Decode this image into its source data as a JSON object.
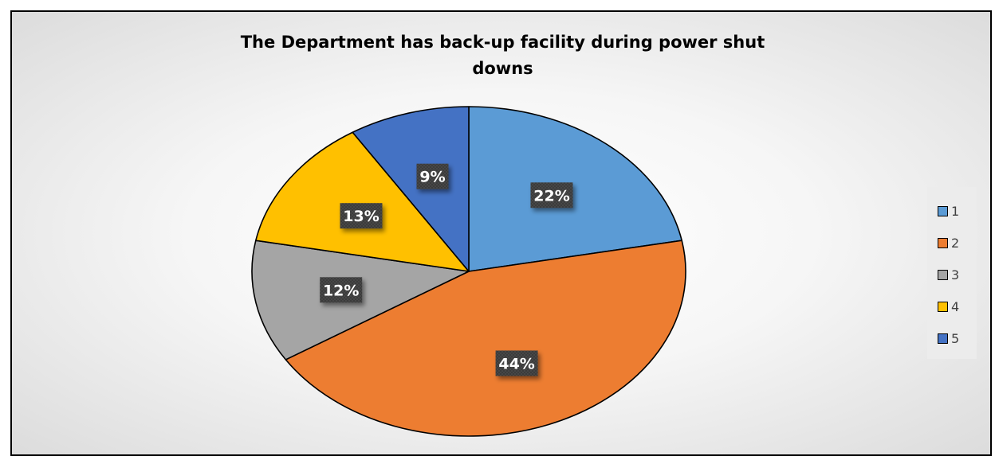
{
  "chart_data": {
    "type": "pie",
    "title": "The Department has back-up facility during power shut downs",
    "title_lines": [
      "The Department has back-up facility during power shut",
      "downs"
    ],
    "categories": [
      "1",
      "2",
      "3",
      "4",
      "5"
    ],
    "values": [
      22,
      44,
      12,
      13,
      9
    ],
    "data_labels": [
      "22%",
      "44%",
      "12%",
      "13%",
      "9%"
    ],
    "colors": [
      "#5b9bd5",
      "#ed7d31",
      "#a5a5a5",
      "#ffc000",
      "#4472c4"
    ],
    "legend_position": "right"
  }
}
